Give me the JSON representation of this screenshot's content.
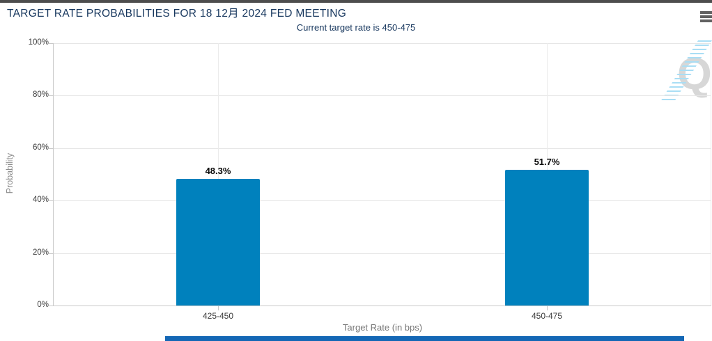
{
  "header": {
    "menu_icon": "hamburger"
  },
  "chart_data": {
    "type": "bar",
    "title": "TARGET RATE PROBABILITIES FOR 18 12月 2024 FED MEETING",
    "subtitle": "Current target rate is 450-475",
    "categories": [
      "425-450",
      "450-475"
    ],
    "values": [
      48.3,
      51.7
    ],
    "value_labels": [
      "48.3%",
      "51.7%"
    ],
    "xlabel": "Target Rate (in bps)",
    "ylabel": "Probability",
    "ylim": [
      0,
      100
    ],
    "ytick_labels": [
      "0%",
      "20%",
      "40%",
      "60%",
      "80%",
      "100%"
    ],
    "grid": true,
    "legend": "none",
    "bar_color": "#0081bd",
    "data_label_color": "#0a0a0a"
  },
  "watermark": {
    "letter": "Q"
  },
  "colors": {
    "top_bar": "#4d4d4d",
    "title_text": "#16365d",
    "accent_strip": "#1467b5"
  }
}
